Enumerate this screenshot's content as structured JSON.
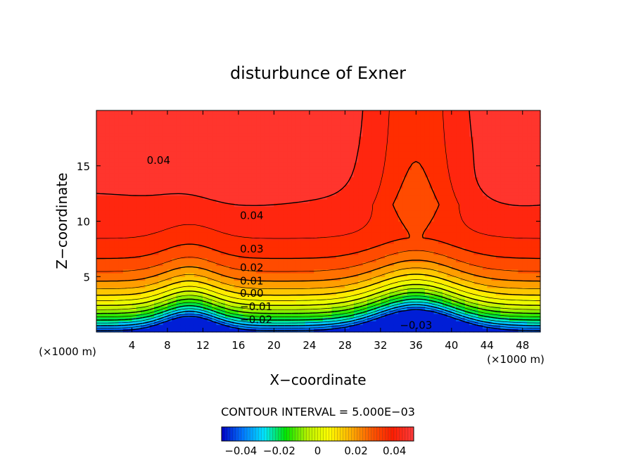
{
  "chart_data": {
    "type": "heatmap",
    "title": "disturbunce of Exner",
    "xlabel": "X−coordinate",
    "ylabel": "Z−coordinate",
    "x_unit_left": "(×1000 m)",
    "x_unit_right": "(×1000 m)",
    "xlim": [
      0,
      50
    ],
    "ylim": [
      0,
      20
    ],
    "x_ticks": [
      4,
      8,
      12,
      16,
      20,
      24,
      28,
      32,
      36,
      40,
      44,
      48
    ],
    "y_ticks": [
      5,
      10,
      15
    ],
    "contour_interval_label": "CONTOUR INTERVAL = 5.000E−03",
    "contour_interval": 0.005,
    "value_range": [
      -0.045,
      0.045
    ],
    "contour_labels": [
      {
        "text": "0.04",
        "x": 7,
        "y": 15.5
      },
      {
        "text": "0.04",
        "x": 17.5,
        "y": 10.5
      },
      {
        "text": "0.03",
        "x": 17.5,
        "y": 7.5
      },
      {
        "text": "0.02",
        "x": 17.5,
        "y": 5.8
      },
      {
        "text": "0.01",
        "x": 17.5,
        "y": 4.6
      },
      {
        "text": "0.00",
        "x": 17.5,
        "y": 3.5
      },
      {
        "text": "−0.01",
        "x": 18,
        "y": 2.3
      },
      {
        "text": "−0.02",
        "x": 18,
        "y": 1.1
      },
      {
        "text": "−0.03",
        "x": 36,
        "y": 0.6
      }
    ],
    "colorbar": {
      "range": [
        -0.05,
        0.05
      ],
      "tick_values": [
        -0.04,
        -0.02,
        0,
        0.02,
        0.04
      ],
      "tick_labels": [
        "−0.04",
        "−0.02",
        "0",
        "0.02",
        "0.04"
      ]
    },
    "colormap": [
      "#0000c8",
      "#0078ff",
      "#00e6ff",
      "#00e600",
      "#b4f000",
      "#ffff00",
      "#ffb400",
      "#ff5a00",
      "#ff1e00",
      "#ff3c3c"
    ]
  }
}
